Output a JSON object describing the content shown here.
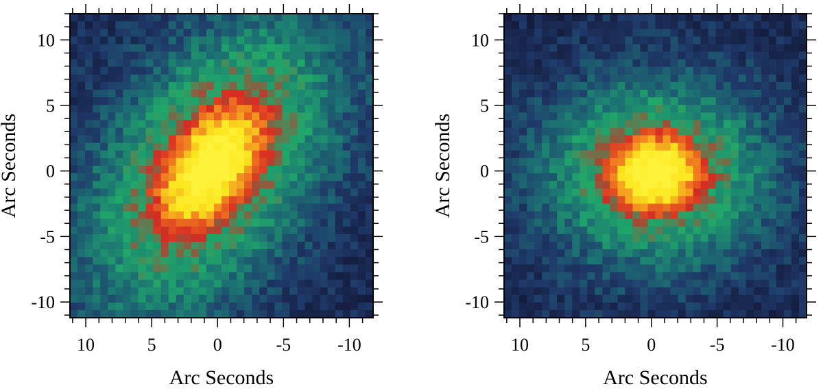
{
  "chart_data": [
    {
      "type": "heatmap",
      "title": "",
      "xlabel": "Arc Seconds",
      "ylabel": "Arc Seconds",
      "xlim": [
        11.2,
        -11.8
      ],
      "ylim": [
        -11.2,
        12.0
      ],
      "x_ticks": [
        10,
        5,
        0,
        -5,
        -10
      ],
      "y_ticks": [
        10,
        5,
        0,
        -5,
        -10
      ],
      "x_tick_labels": [
        "10",
        "5",
        "0",
        "-5",
        "-10"
      ],
      "y_tick_labels": [
        "10",
        "5",
        "0",
        "-5",
        "-10"
      ],
      "grid": false,
      "colormap": [
        "#141c3e",
        "#1f3a6a",
        "#1c6f73",
        "#20a86a",
        "#d62a22",
        "#f07a20",
        "#fbe61e",
        "#fff23a"
      ],
      "source": {
        "shape": "elongated",
        "center": [
          0.5,
          0.3
        ],
        "position_angle_deg": 55,
        "semi_major_arcsec": 5.6,
        "semi_minor_arcsec": 3.2
      }
    },
    {
      "type": "heatmap",
      "title": "",
      "xlabel": "Arc Seconds",
      "ylabel": "Arc Seconds",
      "xlim": [
        11.2,
        -11.8
      ],
      "ylim": [
        -11.2,
        12.0
      ],
      "x_ticks": [
        10,
        5,
        0,
        -5,
        -10
      ],
      "y_ticks": [
        10,
        5,
        0,
        -5,
        -10
      ],
      "x_tick_labels": [
        "10",
        "5",
        "0",
        "-5",
        "-10"
      ],
      "y_tick_labels": [
        "10",
        "5",
        "0",
        "-5",
        "-10"
      ],
      "grid": false,
      "colormap": [
        "#141c3e",
        "#1f3a6a",
        "#1c6f73",
        "#20a86a",
        "#d62a22",
        "#f07a20",
        "#fbe61e",
        "#fff23a"
      ],
      "source": {
        "shape": "round",
        "center": [
          -0.3,
          -0.2
        ],
        "position_angle_deg": 0,
        "semi_major_arcsec": 3.6,
        "semi_minor_arcsec": 3.0
      }
    }
  ]
}
